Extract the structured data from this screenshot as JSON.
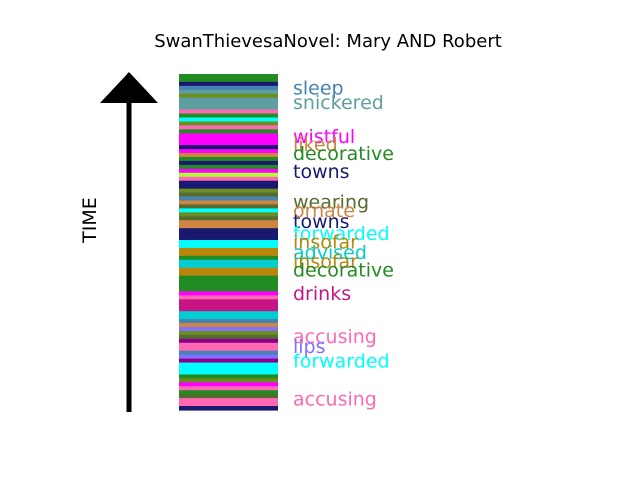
{
  "chart_data": {
    "type": "timeline-strip",
    "title": "SwanThievesaNovel: Mary AND Robert",
    "axis_label": "TIME",
    "stripes": [
      "#228b22",
      "#228b22",
      "#191970",
      "#4682b4",
      "#5f9ea0",
      "#6b8e23",
      "#5f9ea0",
      "#5f9ea0",
      "#5f9ea0",
      "#ff69b4",
      "#228b22",
      "#00ffff",
      "#6b8e23",
      "#ff69b4",
      "#228b22",
      "#ff00ff",
      "#ff00ff",
      "#ff00ff",
      "#191970",
      "#ff00ff",
      "#cd853f",
      "#228b22",
      "#191970",
      "#228b22",
      "#ff00ff",
      "#adff2f",
      "#ff69b4",
      "#191970",
      "#191970",
      "#6b8e23",
      "#556b2f",
      "#4682b4",
      "#cd853f",
      "#556b2f",
      "#00ffff",
      "#6b8e23",
      "#556b2f",
      "#cd853f",
      "#cd853f",
      "#191970",
      "#191970",
      "#191970",
      "#00ffff",
      "#00ffff",
      "#b8860b",
      "#b8860b",
      "#228b22",
      "#00ced1",
      "#00ced1",
      "#b8860b",
      "#b8860b",
      "#228b22",
      "#228b22",
      "#228b22",
      "#228b22",
      "#ff00ff",
      "#ff69b4",
      "#c71585",
      "#c71585",
      "#c71585",
      "#00ced1",
      "#00ced1",
      "#4682b4",
      "#cd853f",
      "#8470ff",
      "#6b8e23",
      "#556b2f",
      "#8b008b",
      "#ff69b4",
      "#ff69b4",
      "#4682b4",
      "#8470ff",
      "#8b008b",
      "#00ffff",
      "#00ffff",
      "#00ffff",
      "#228b22",
      "#6b8e23",
      "#ff00ff",
      "#ff69b4",
      "#228b22",
      "#556b2f",
      "#ff69b4",
      "#ff69b4",
      "#191970"
    ],
    "annotations": [
      {
        "text": "sleep",
        "pos": 0.96,
        "color": "#4682b4"
      },
      {
        "text": "snickered",
        "pos": 0.917,
        "color": "#5f9ea0"
      },
      {
        "text": "wistful",
        "pos": 0.815,
        "color": "#ff00ff"
      },
      {
        "text": "liked",
        "pos": 0.792,
        "color": "#cd853f"
      },
      {
        "text": "decorative",
        "pos": 0.765,
        "color": "#228b22"
      },
      {
        "text": "towns",
        "pos": 0.712,
        "color": "#191970"
      },
      {
        "text": "wearing",
        "pos": 0.62,
        "color": "#556b2f"
      },
      {
        "text": "ornate",
        "pos": 0.595,
        "color": "#cd853f"
      },
      {
        "text": "towns",
        "pos": 0.563,
        "color": "#191970"
      },
      {
        "text": "forwarded",
        "pos": 0.527,
        "color": "#00ffff"
      },
      {
        "text": "insofar",
        "pos": 0.502,
        "color": "#b8860b"
      },
      {
        "text": "advised",
        "pos": 0.47,
        "color": "#00ced1"
      },
      {
        "text": "insofar",
        "pos": 0.444,
        "color": "#b8860b"
      },
      {
        "text": "decorative",
        "pos": 0.418,
        "color": "#228b22"
      },
      {
        "text": "drinks",
        "pos": 0.348,
        "color": "#c71585"
      },
      {
        "text": "accusing",
        "pos": 0.22,
        "color": "#ff69b4"
      },
      {
        "text": "lips",
        "pos": 0.19,
        "color": "#8470ff"
      },
      {
        "text": "forwarded",
        "pos": 0.147,
        "color": "#00ffff"
      },
      {
        "text": "accusing",
        "pos": 0.034,
        "color": "#ff69b4"
      }
    ]
  }
}
